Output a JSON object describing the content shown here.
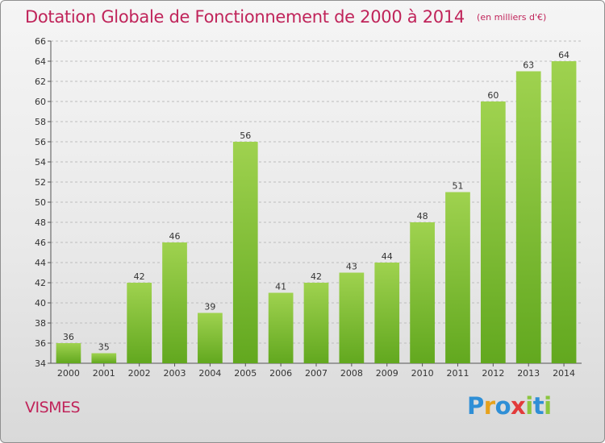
{
  "header": {
    "title": "Dotation Globale de Fonctionnement de 2000 à 2014",
    "unit": "(en milliers d'€)"
  },
  "footer": {
    "commune": "VISMES",
    "logo_letters": [
      "P",
      "r",
      "o",
      "x",
      "i",
      "t",
      "i"
    ]
  },
  "chart_data": {
    "type": "bar",
    "title": "Dotation Globale de Fonctionnement de 2000 à 2014",
    "subtitle": "(en milliers d'€)",
    "xlabel": "",
    "ylabel": "",
    "categories": [
      "2000",
      "2001",
      "2002",
      "2003",
      "2004",
      "2005",
      "2006",
      "2007",
      "2008",
      "2009",
      "2010",
      "2011",
      "2012",
      "2013",
      "2014"
    ],
    "values": [
      36,
      35,
      42,
      46,
      39,
      56,
      41,
      42,
      43,
      44,
      48,
      51,
      60,
      63,
      64
    ],
    "ylim": [
      34,
      66
    ],
    "yticks": [
      34,
      36,
      38,
      40,
      42,
      44,
      46,
      48,
      50,
      52,
      54,
      56,
      58,
      60,
      62,
      64,
      66
    ],
    "grid": true,
    "legend": "none",
    "colors": {
      "bar_light": "#9fd24f",
      "bar_dark": "#62a81f",
      "grid": "#bdbdbd",
      "title": "#c0245a"
    }
  }
}
